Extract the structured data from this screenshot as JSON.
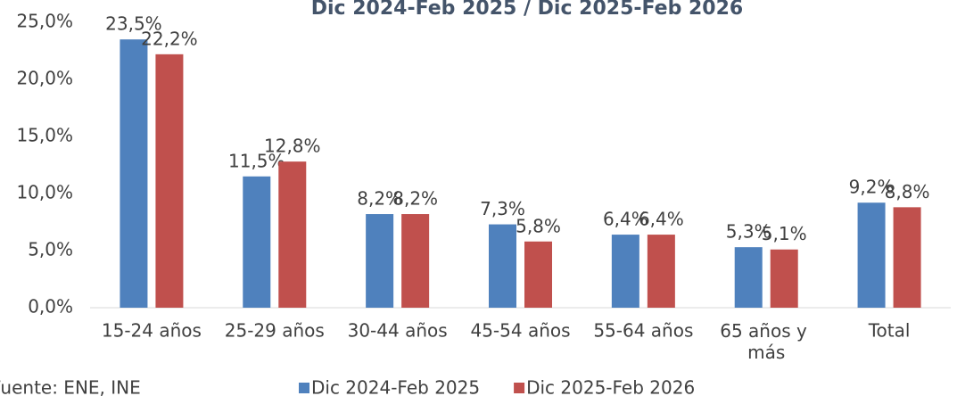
{
  "chart_data": {
    "type": "bar",
    "title": "Dic 2024-Feb 2025 / Dic 2025-Feb 2026",
    "source": "Fuente: ENE, INE",
    "categories": [
      "15-24 años",
      "25-29 años",
      "30-44 años",
      "45-54 años",
      "55-64 años",
      "65 años y más",
      "Total"
    ],
    "series": [
      {
        "name": "Dic 2024-Feb 2025",
        "color": "#4f81bd",
        "values": [
          23.5,
          11.5,
          8.2,
          7.3,
          6.4,
          5.3,
          9.2
        ],
        "value_labels": [
          "23,5%",
          "11,5%",
          "8,2%",
          "7,3%",
          "6,4%",
          "5,3%",
          "9,2%"
        ]
      },
      {
        "name": "Dic 2025-Feb 2026",
        "color": "#c0504d",
        "values": [
          22.2,
          12.8,
          8.2,
          5.8,
          6.4,
          5.1,
          8.8
        ],
        "value_labels": [
          "22,2%",
          "12,8%",
          "8,2%",
          "5,8%",
          "6,4%",
          "5,1%",
          "8,8%"
        ]
      }
    ],
    "ylim": [
      0,
      25
    ],
    "yticks": [
      {
        "value": 0,
        "label": "0,0%"
      },
      {
        "value": 5,
        "label": "5,0%"
      },
      {
        "value": 10,
        "label": "10,0%"
      },
      {
        "value": 15,
        "label": "15,0%"
      },
      {
        "value": 20,
        "label": "20,0%"
      },
      {
        "value": 25,
        "label": "25,0%"
      }
    ],
    "grid": false,
    "legend": "bottom"
  }
}
